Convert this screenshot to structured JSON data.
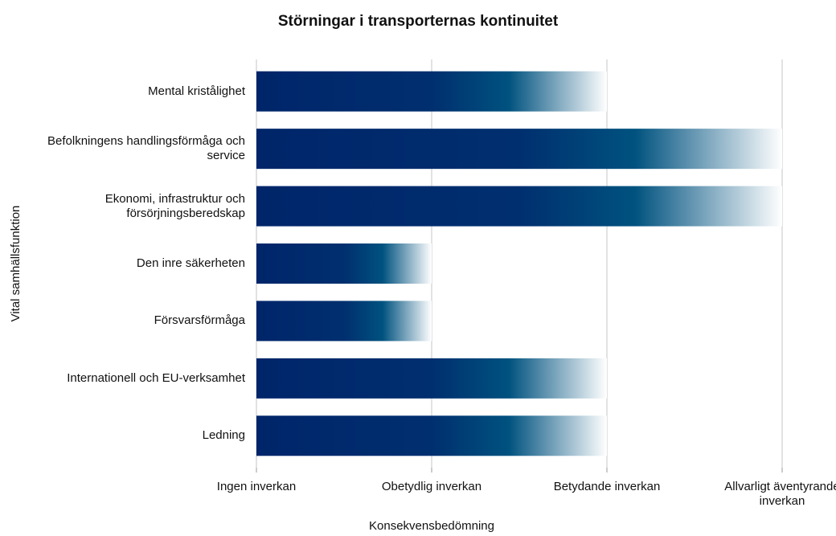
{
  "chart_data": {
    "type": "barh",
    "title": "Störningar i transporternas kontinuitet",
    "x_label": "Konsekvensbedömning",
    "y_label": "Vital samhällsfunktion",
    "categories": [
      "Mental kristålighet",
      "Befolkningens handlingsförmåga och service",
      "Ekonomi, infrastruktur och försörjningsberedskap",
      "Den inre säkerheten",
      "Försvarsförmåga",
      "Internationell och EU-verksamhet",
      "Ledning"
    ],
    "values": [
      2,
      3,
      3,
      1,
      1,
      2,
      2
    ],
    "color": "#002a6c",
    "xlim": [
      0,
      3
    ],
    "xticks": [
      {
        "value": 0,
        "label": "Ingen inverkan"
      },
      {
        "value": 1,
        "label": "Obetydlig inverkan"
      },
      {
        "value": 2,
        "label": "Betydande inverkan"
      },
      {
        "value": 3,
        "label": "Allvarligt äventyrande inverkan"
      }
    ],
    "grid": true
  }
}
